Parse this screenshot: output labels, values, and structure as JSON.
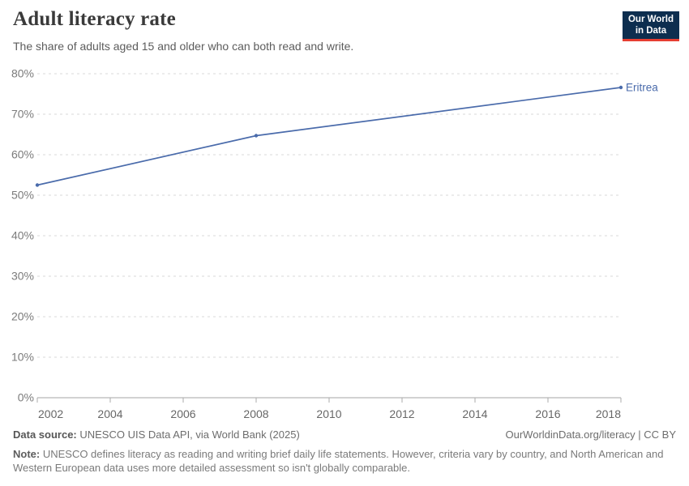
{
  "header": {
    "title": "Adult literacy rate",
    "subtitle": "The share of adults aged 15 and older who can both read and write.",
    "logo": {
      "line1": "Our World",
      "line2": "in Data",
      "bg_color": "#0d2e4f",
      "accent_color": "#e63e32"
    }
  },
  "chart_data": {
    "type": "line",
    "title": "Adult literacy rate",
    "x": {
      "min": 2002,
      "max": 2018,
      "ticks": [
        2002,
        2004,
        2006,
        2008,
        2010,
        2012,
        2014,
        2016,
        2018
      ]
    },
    "y": {
      "min": 0,
      "max": 80,
      "ticks": [
        0,
        10,
        20,
        30,
        40,
        50,
        60,
        70,
        80
      ],
      "tick_suffix": "%"
    },
    "grid": "horizontal-dashed",
    "legend_position": "end-of-line-label",
    "series": [
      {
        "name": "Eritrea",
        "color": "#4a6bab",
        "points": [
          [
            2002,
            52.5
          ],
          [
            2008,
            64.7
          ],
          [
            2018,
            76.6
          ]
        ]
      }
    ],
    "style": {
      "gridline_color": "#d9d9d9",
      "baseline_color": "#a5a5a5",
      "tick_color": "#ababab",
      "x_label_color": "#676767",
      "y_label_color": "#7b7b7b"
    }
  },
  "footer": {
    "datasource_label": "Data source:",
    "datasource_value": " UNESCO UIS Data API, via World Bank (2025)",
    "link": "OurWorldinData.org/literacy | CC BY",
    "note_label": "Note:",
    "note_value": " UNESCO defines literacy as reading and writing brief daily life statements. However, criteria vary by country, and North American and Western European data uses more detailed assessment so isn't globally comparable."
  }
}
